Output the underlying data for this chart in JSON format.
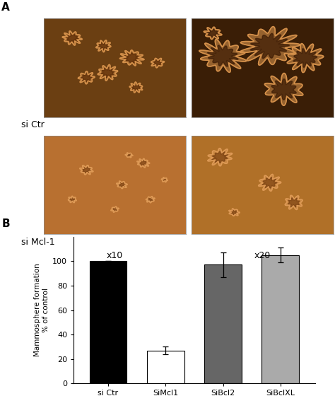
{
  "panel_A_label": "A",
  "panel_B_label": "B",
  "row_labels": [
    "si Ctr",
    "si Mcl-1"
  ],
  "col_labels": [
    "x10",
    "x20"
  ],
  "img_bg_colors_row0": [
    "#6b3f12",
    "#3a1e06"
  ],
  "img_bg_colors_row1": [
    "#b87030",
    "#b07028"
  ],
  "bar_categories": [
    "si Ctr",
    "SiMcl1",
    "SiBcl2",
    "SiBclXL"
  ],
  "bar_values": [
    100,
    27,
    97,
    105
  ],
  "bar_errors": [
    0,
    3,
    10,
    6
  ],
  "bar_colors": [
    "#000000",
    "#ffffff",
    "#666666",
    "#aaaaaa"
  ],
  "bar_edge_colors": [
    "#000000",
    "#000000",
    "#000000",
    "#000000"
  ],
  "ylabel": "Mammosphere formation\n% of control",
  "ylim": [
    0,
    120
  ],
  "yticks": [
    0,
    20,
    40,
    60,
    80,
    100
  ],
  "background_color": "#ffffff"
}
